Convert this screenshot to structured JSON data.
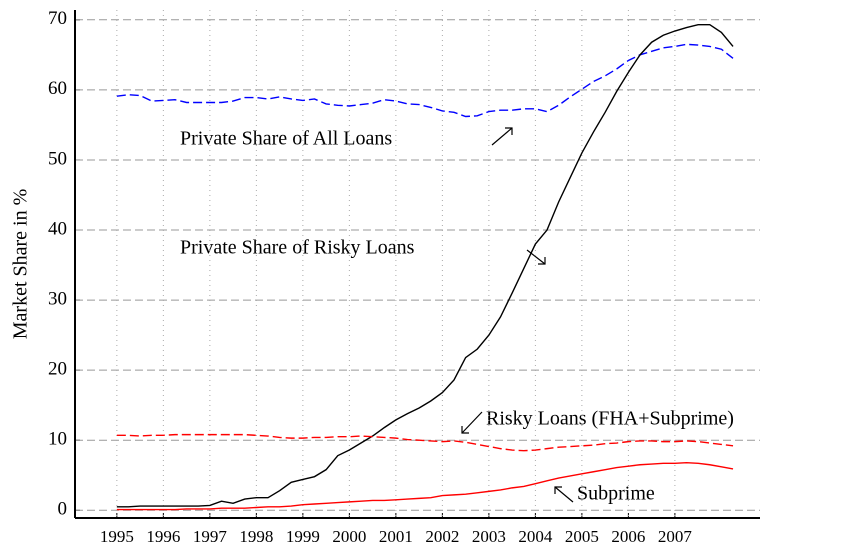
{
  "chart_data": {
    "type": "line",
    "y_label": "Market Share in %",
    "annotations": [
      "Private Share of All Loans",
      "Private Share of Risky Loans",
      "Risky Loans (FHA+Subprime)",
      "Subprime"
    ],
    "x": [
      1995,
      1995.25,
      1995.5,
      1995.75,
      1996,
      1996.25,
      1996.5,
      1996.75,
      1997,
      1997.25,
      1997.5,
      1997.75,
      1998,
      1998.25,
      1998.5,
      1998.75,
      1999,
      1999.25,
      1999.5,
      1999.75,
      2000,
      2000.25,
      2000.5,
      2000.75,
      2001,
      2001.25,
      2001.5,
      2001.75,
      2002,
      2002.25,
      2002.5,
      2002.75,
      2003,
      2003.25,
      2003.5,
      2003.75,
      2004,
      2004.25,
      2004.5,
      2004.75,
      2005,
      2005.25,
      2005.5,
      2005.75,
      2006,
      2006.25,
      2006.5,
      2006.75,
      2007,
      2007.25,
      2007.5,
      2007.75,
      2008,
      2008.25
    ],
    "series": [
      {
        "name": "Private Share of All Loans",
        "color": "#0000ff",
        "style": "dashed",
        "values": [
          59.1,
          59.3,
          59.2,
          58.4,
          58.5,
          58.6,
          58.2,
          58.2,
          58.2,
          58.2,
          58.4,
          58.9,
          58.9,
          58.7,
          59.0,
          58.7,
          58.5,
          58.7,
          58.0,
          57.8,
          57.7,
          57.9,
          58.1,
          58.6,
          58.4,
          58.0,
          57.9,
          57.5,
          57.0,
          56.8,
          56.2,
          56.3,
          56.9,
          57.1,
          57.1,
          57.3,
          57.3,
          56.9,
          57.8,
          59.0,
          60.1,
          61.2,
          62.0,
          63.0,
          64.2,
          65.0,
          65.5,
          66.0,
          66.2,
          66.5,
          66.4,
          66.2,
          65.8,
          64.5
        ]
      },
      {
        "name": "Private Share of Risky Loans",
        "color": "#000000",
        "style": "solid",
        "values": [
          0.5,
          0.5,
          0.6,
          0.6,
          0.6,
          0.6,
          0.6,
          0.6,
          0.7,
          1.3,
          1.0,
          1.6,
          1.8,
          1.8,
          2.8,
          4.0,
          4.4,
          4.8,
          5.8,
          7.8,
          8.6,
          9.6,
          10.6,
          11.8,
          12.9,
          13.8,
          14.6,
          15.6,
          16.8,
          18.6,
          21.8,
          23.0,
          25.0,
          27.6,
          31.0,
          34.5,
          38.0,
          40.0,
          44.0,
          47.5,
          51.0,
          54.0,
          56.8,
          59.8,
          62.5,
          65.0,
          66.8,
          67.8,
          68.4,
          68.9,
          69.3,
          69.3,
          68.2,
          66.2
        ]
      },
      {
        "name": "Risky Loans (FHA+Subprime)",
        "color": "#ff0000",
        "style": "dashed",
        "values": [
          10.7,
          10.7,
          10.6,
          10.7,
          10.7,
          10.8,
          10.8,
          10.8,
          10.8,
          10.8,
          10.8,
          10.8,
          10.7,
          10.6,
          10.4,
          10.3,
          10.3,
          10.4,
          10.4,
          10.5,
          10.5,
          10.6,
          10.5,
          10.4,
          10.3,
          10.1,
          10.0,
          9.9,
          9.8,
          9.9,
          9.7,
          9.4,
          9.1,
          8.8,
          8.6,
          8.5,
          8.6,
          8.8,
          9.0,
          9.1,
          9.2,
          9.3,
          9.5,
          9.6,
          9.8,
          9.9,
          9.9,
          9.8,
          9.8,
          9.9,
          9.8,
          9.6,
          9.4,
          9.2
        ]
      },
      {
        "name": "Subprime",
        "color": "#ff0000",
        "style": "solid",
        "values": [
          0.1,
          0.1,
          0.1,
          0.1,
          0.1,
          0.1,
          0.2,
          0.2,
          0.2,
          0.3,
          0.3,
          0.3,
          0.4,
          0.5,
          0.5,
          0.6,
          0.8,
          0.9,
          1.0,
          1.1,
          1.2,
          1.3,
          1.4,
          1.4,
          1.5,
          1.6,
          1.7,
          1.8,
          2.1,
          2.2,
          2.3,
          2.5,
          2.7,
          2.9,
          3.2,
          3.4,
          3.8,
          4.2,
          4.6,
          4.9,
          5.2,
          5.5,
          5.8,
          6.1,
          6.3,
          6.5,
          6.6,
          6.7,
          6.7,
          6.8,
          6.7,
          6.5,
          6.2,
          5.9
        ]
      }
    ],
    "xlim": [
      1994.1,
      2008.83
    ],
    "ylim": [
      -1.1,
      71.4
    ],
    "xticks": [
      1995,
      1996,
      1997,
      1998,
      1999,
      2000,
      2001,
      2002,
      2003,
      2004,
      2005,
      2006,
      2007
    ],
    "yticks": [
      0,
      10,
      20,
      30,
      40,
      50,
      60,
      70
    ],
    "grid": true
  }
}
